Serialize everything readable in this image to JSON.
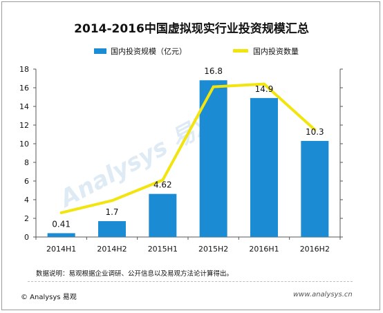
{
  "chart_data": {
    "type": "bar+line",
    "title": "2014-2016中国虚拟现实行业投资规模汇总",
    "categories": [
      "2014H1",
      "2014H2",
      "2015H1",
      "2015H2",
      "2016H1",
      "2016H2"
    ],
    "series": [
      {
        "name": "国内投资规模（亿元）",
        "type": "bar",
        "color": "#1b8bd4",
        "values": [
          0.41,
          1.7,
          4.62,
          16.8,
          14.9,
          10.3
        ],
        "labels": [
          "0.41",
          "1.7",
          "4.62",
          "16.8",
          "14.9",
          "10.3"
        ]
      },
      {
        "name": "国内投资数量",
        "type": "line",
        "color": "#f2e40d",
        "axis": "secondary",
        "values": [
          2.6,
          3.9,
          6.1,
          16.1,
          16.4,
          11.5
        ]
      }
    ],
    "ylim": [
      0,
      18
    ],
    "yticks": [
      0,
      2,
      4,
      6,
      8,
      10,
      12,
      14,
      16,
      18
    ],
    "grid": false,
    "legend": "top"
  },
  "watermark": "Analysys 易观",
  "note": "数据说明：易观根据企业调研、公开信息以及易观方法论计算得出。",
  "copyright": "© Analysys 易观",
  "site": "www.analysys.cn"
}
